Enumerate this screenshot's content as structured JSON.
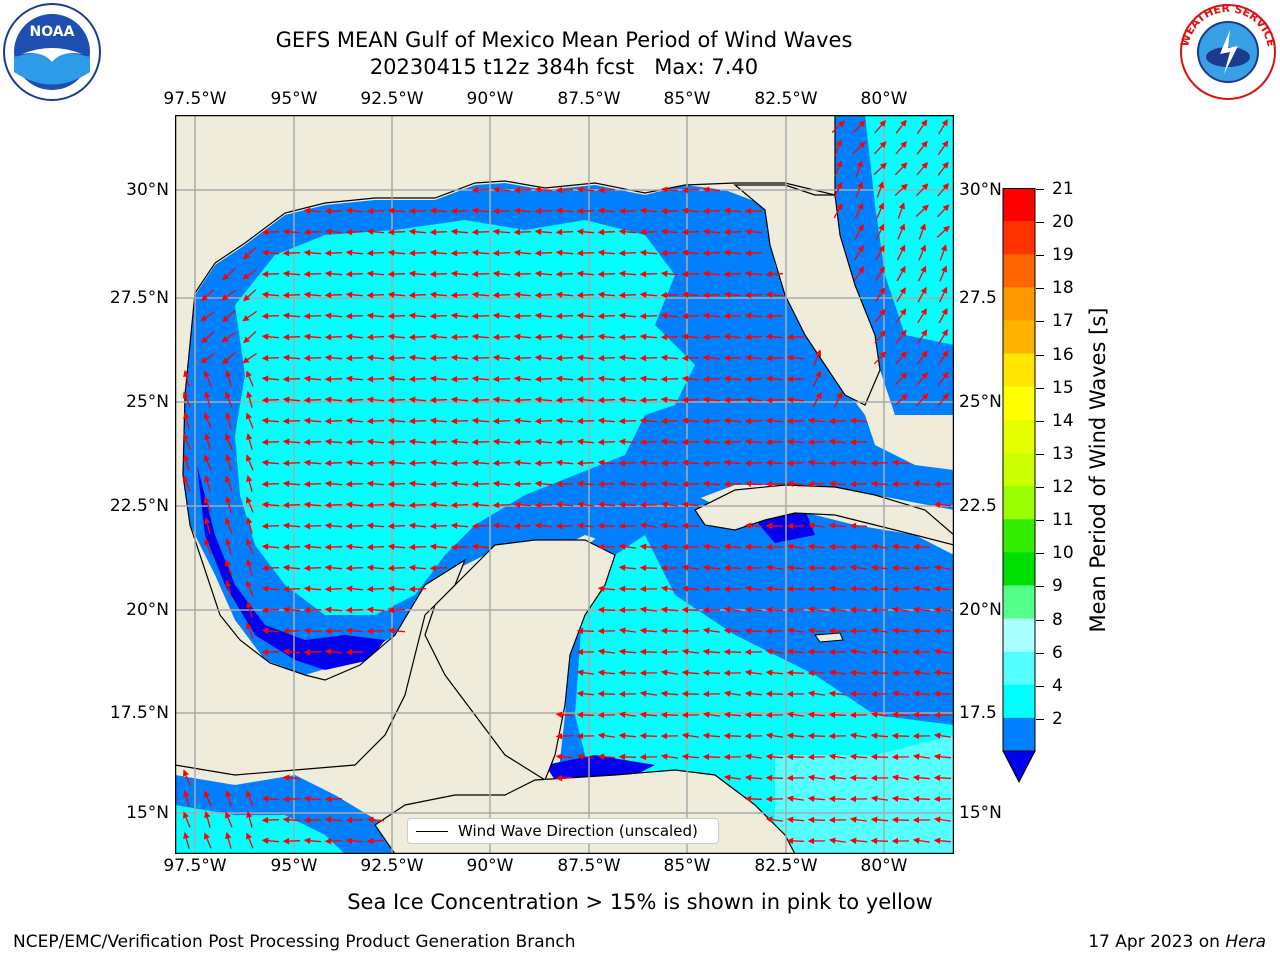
{
  "title": {
    "line1": "GEFS MEAN Gulf of Mexico Mean Period of Wind Waves",
    "line2": "20230415 t12z 384h fcst   Max: 7.40"
  },
  "logos": {
    "left": "NOAA",
    "right": "NATIONAL WEATHER SERVICE"
  },
  "map": {
    "lon_ticks": [
      "97.5°W",
      "95°W",
      "92.5°W",
      "90°W",
      "87.5°W",
      "85°W",
      "82.5°W",
      "80°W"
    ],
    "lat_ticks_left": [
      "30°N",
      "27.5°N",
      "25°N",
      "22.5°N",
      "20°N",
      "17.5°N",
      "15°N"
    ],
    "lat_ticks_right": [
      "30°N",
      "27.5",
      "25°N",
      "22.5",
      "20°N",
      "17.5",
      "15°N"
    ],
    "land_color": "#efecdc",
    "arrow_color": "#ff0000",
    "grid": true,
    "legend_label": "Wind Wave Direction (unscaled)"
  },
  "colorbar": {
    "title": "Mean Period of Wind Waves [s]",
    "ticks": [
      "21",
      "20",
      "19",
      "18",
      "17",
      "16",
      "15",
      "14",
      "13",
      "12",
      "11",
      "10",
      "9",
      "8",
      "6",
      "4",
      "2"
    ],
    "colors": [
      "#ff0000",
      "#ff3300",
      "#ff6600",
      "#ff9900",
      "#ffb300",
      "#ffe600",
      "#ffff00",
      "#e6ff00",
      "#ccff00",
      "#99ff00",
      "#33ee00",
      "#00dd00",
      "#55ff88",
      "#aaffff",
      "#55ffff",
      "#00ffff",
      "#0080ff",
      "#0000ee"
    ]
  },
  "note": "Sea Ice Concentration > 15% is shown in pink to yellow",
  "footer": {
    "left": "NCEP/EMC/Verification Post Processing Product Generation Branch",
    "date": "17 Apr 2023 on ",
    "machine": "Hera"
  }
}
